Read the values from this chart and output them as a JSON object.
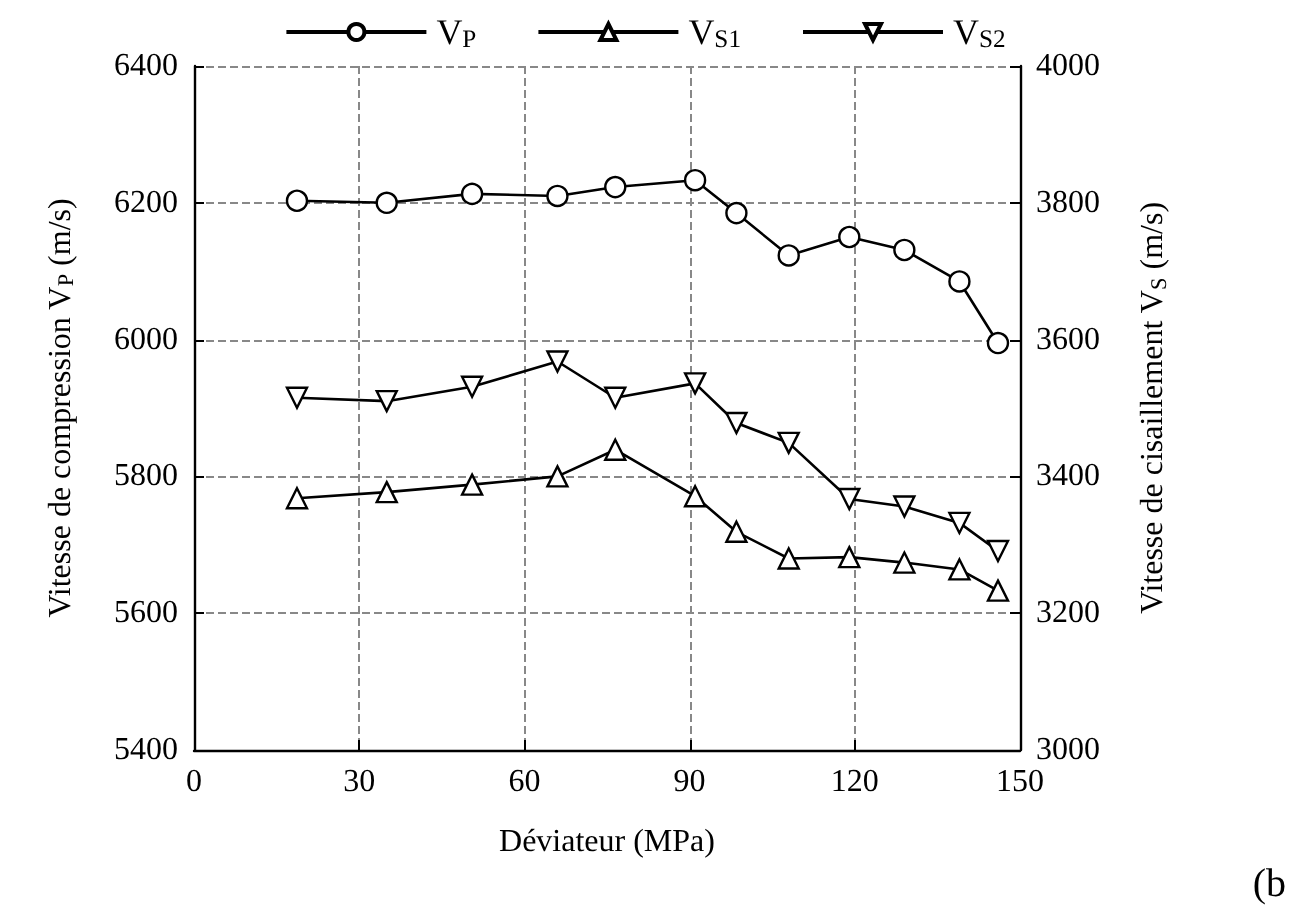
{
  "chart_data": {
    "type": "line",
    "xlabel": "Déviateur (MPa)",
    "ylabel": "Vitesse de compression V$_{P}$ (m/s)",
    "y2label": "Vitesse de cisaillement V$_{S}$ (m/s)",
    "x": [
      18.7,
      35,
      50.5,
      66,
      76.5,
      91,
      98.5,
      108,
      119,
      129,
      139,
      146
    ],
    "series": [
      {
        "name": "V$_{P}$",
        "color": "#000000",
        "marker": "circle",
        "values": [
          6203,
          6200,
          6213,
          6210,
          6223,
          6233,
          6185,
          6123,
          6150,
          6131,
          6085,
          5995
        ]
      },
      {
        "name": "V$_{S1}$",
        "color": "#000000",
        "marker": "triangle",
        "axis": "y2",
        "values": [
          3368,
          3377,
          3388,
          3400,
          3439,
          3371,
          3319,
          3280,
          3282,
          3274,
          3264,
          3233
        ]
      },
      {
        "name": "V$_{S2}$",
        "color": "#000000",
        "marker": "triangle-down",
        "axis": "y2",
        "values": [
          3515,
          3510,
          3531,
          3568,
          3515,
          3536,
          3478,
          3449,
          3367,
          3356,
          3332,
          3291
        ]
      }
    ],
    "xlim": [
      0,
      150
    ],
    "xticks": [
      0,
      30,
      60,
      90,
      120,
      150
    ],
    "ylim": [
      5400,
      6400
    ],
    "yticks": [
      5400,
      5600,
      5800,
      6000,
      6200,
      6400
    ],
    "y2lim": [
      3000,
      4000
    ],
    "y2ticks": [
      3000,
      3200,
      3400,
      3600,
      3800,
      4000
    ],
    "grid": true,
    "legend": "top",
    "line_style": "solid",
    "annotations": [
      "(b"
    ]
  }
}
